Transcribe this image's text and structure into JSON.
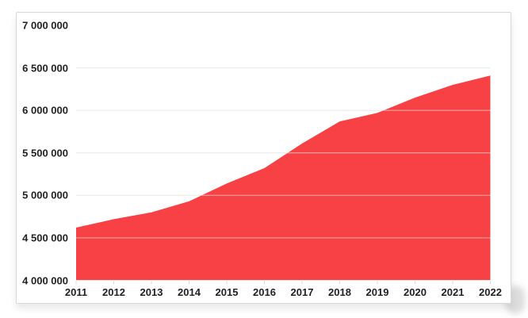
{
  "chart_data": {
    "type": "area",
    "title": "",
    "xlabel": "",
    "ylabel": "",
    "categories": [
      "2011",
      "2012",
      "2013",
      "2014",
      "2015",
      "2016",
      "2017",
      "2018",
      "2019",
      "2020",
      "2021",
      "2022"
    ],
    "values": [
      4620000,
      4720000,
      4800000,
      4930000,
      5140000,
      5320000,
      5610000,
      5870000,
      5970000,
      6150000,
      6300000,
      6410000
    ],
    "ylim": [
      4000000,
      7000000
    ],
    "ytick_interval": 500000,
    "yticklabels": [
      "4 000 000",
      "4 500 000",
      "5 000 000",
      "5 500 000",
      "6 000 000",
      "6 500 000",
      "7 000 000"
    ],
    "gridlines": "horizontal, at 4.5M-6.5M only, drawn over the area fill",
    "legend_position": "none",
    "colors": {
      "area_fill": "#f84144",
      "gridline": "#dedede",
      "axis_line": "#e2e2e2",
      "tick_mark": "#d9d9d9",
      "label_text": "#222222",
      "card_border": "#d9d9d9",
      "card_background": "#ffffff"
    }
  }
}
